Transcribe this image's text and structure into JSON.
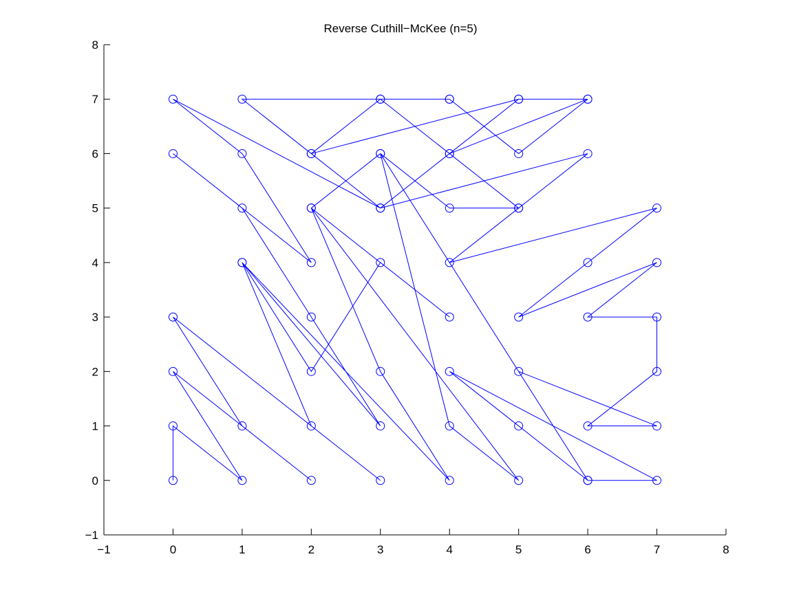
{
  "chart_data": {
    "type": "line",
    "title": "Reverse Cuthill−McKee (n=5)",
    "xlabel": "",
    "ylabel": "",
    "xlim": [
      -1,
      8
    ],
    "ylim": [
      -1,
      8
    ],
    "xticks": [
      -1,
      0,
      1,
      2,
      3,
      4,
      5,
      6,
      7,
      8
    ],
    "yticks": [
      -1,
      0,
      1,
      2,
      3,
      4,
      5,
      6,
      7,
      8
    ],
    "xtick_labels": [
      "−1",
      "0",
      "1",
      "2",
      "3",
      "4",
      "5",
      "6",
      "7",
      "8"
    ],
    "ytick_labels": [
      "−1",
      "0",
      "1",
      "2",
      "3",
      "4",
      "5",
      "6",
      "7",
      "8"
    ],
    "grid": false,
    "legend": "none",
    "line_color": "#0000ff",
    "marker": "circle",
    "series": [
      {
        "x": [
          0,
          0,
          1,
          0,
          2,
          1,
          0,
          3,
          2,
          1,
          4,
          3,
          2,
          5,
          4,
          3,
          6,
          5,
          4,
          7,
          6,
          5,
          7,
          6,
          7,
          7,
          6,
          7,
          5,
          6,
          7,
          4,
          5,
          6,
          3,
          4,
          5,
          2,
          3,
          4,
          1,
          2,
          3,
          0,
          1,
          2,
          0,
          1,
          2,
          3,
          1,
          2,
          3,
          4,
          2,
          3,
          4,
          5,
          3,
          4,
          5,
          6,
          4,
          5,
          6
        ],
        "y": [
          0,
          1,
          0,
          2,
          0,
          1,
          3,
          0,
          1,
          4,
          0,
          2,
          5,
          0,
          1,
          6,
          0,
          1,
          2,
          0,
          0,
          2,
          1,
          1,
          2,
          3,
          3,
          4,
          3,
          4,
          5,
          4,
          5,
          6,
          5,
          6,
          7,
          6,
          7,
          7,
          7,
          6,
          5,
          7,
          6,
          4,
          6,
          5,
          3,
          1,
          4,
          2,
          4,
          3,
          5,
          6,
          5,
          5,
          7,
          7,
          6,
          7,
          6,
          7,
          7
        ]
      }
    ]
  }
}
